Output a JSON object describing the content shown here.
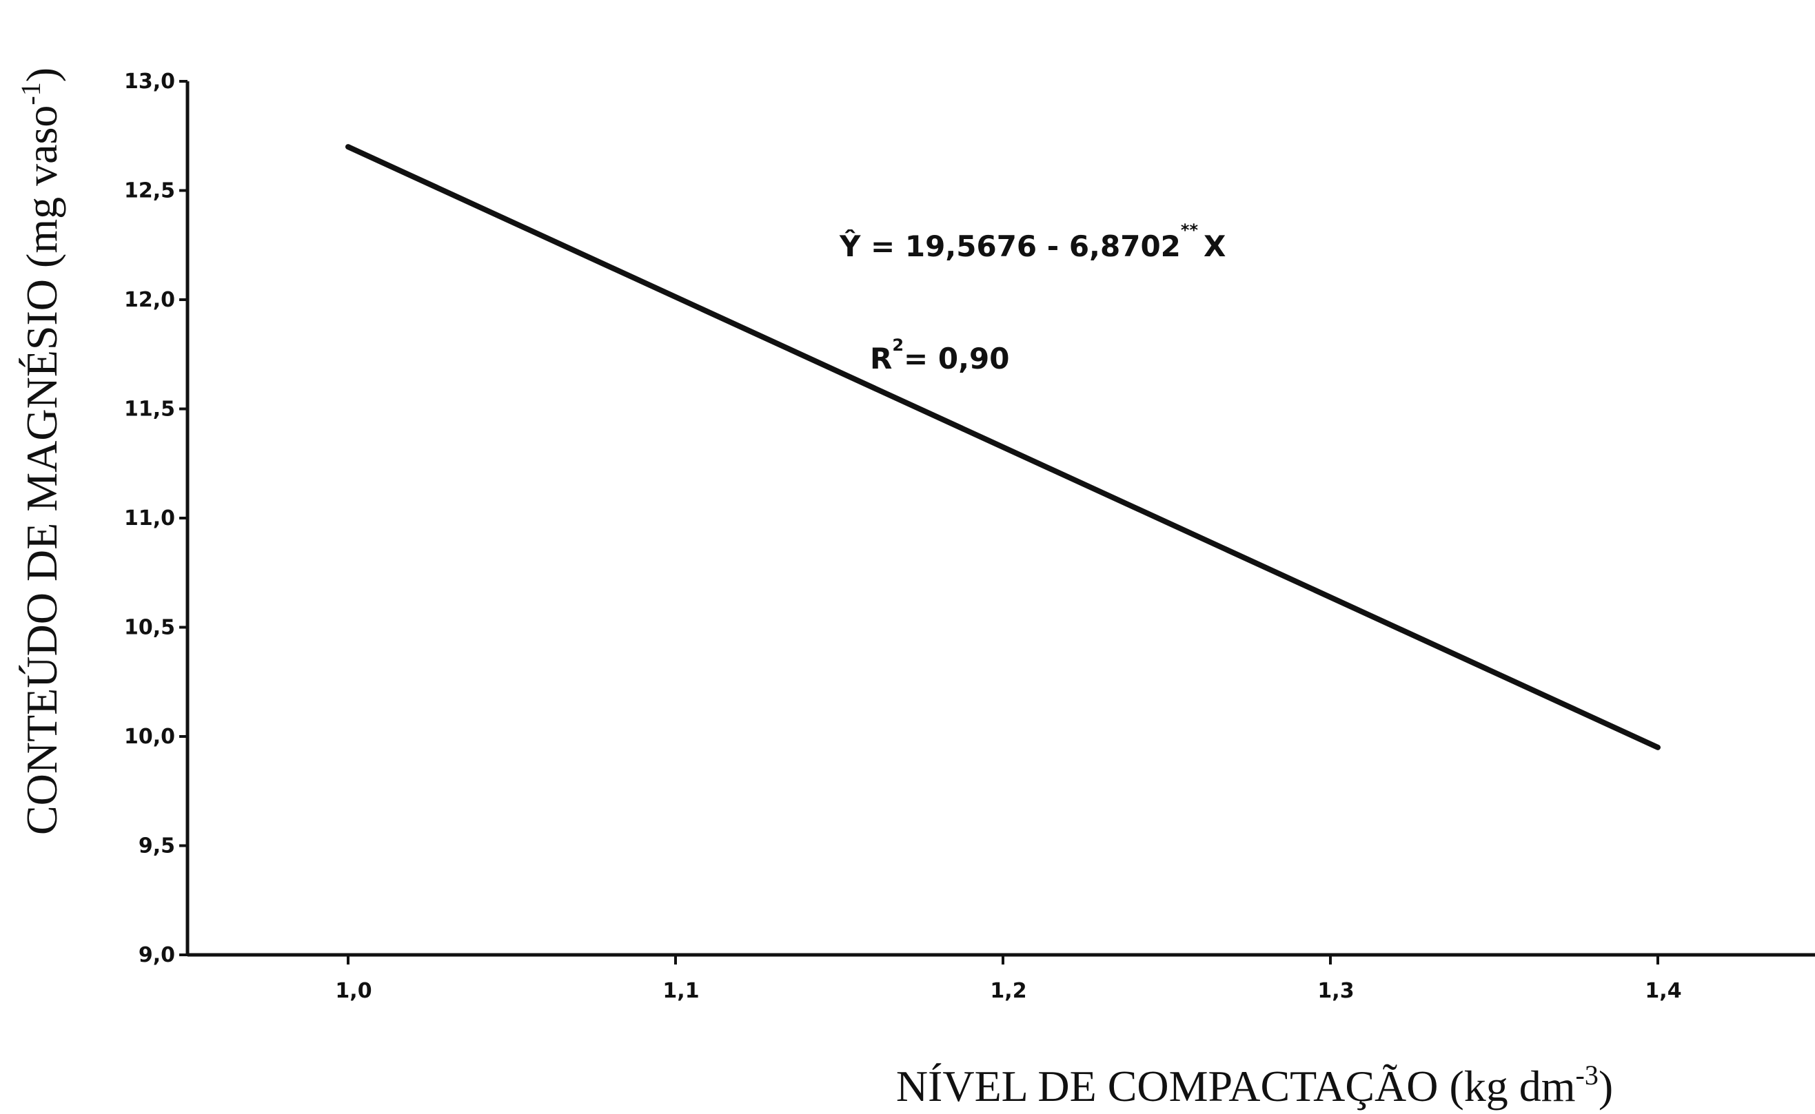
{
  "chart_data": {
    "type": "line",
    "xlabel": "NÍVEL DE COMPACTAÇÃO (kg dm",
    "xlabel_sup": "-3",
    "xlabel_end": ")",
    "ylabel": "CONTEÚDO DE MAGNÉSIO (mg vaso",
    "ylabel_sup": "-1",
    "ylabel_end": ")",
    "xlim": [
      0.95,
      1.45
    ],
    "ylim": [
      9.0,
      13.0
    ],
    "x_ticks": [
      {
        "value": 1.0,
        "label": "1,0"
      },
      {
        "value": 1.1,
        "label": "1,1"
      },
      {
        "value": 1.2,
        "label": "1,2"
      },
      {
        "value": 1.3,
        "label": "1,3"
      },
      {
        "value": 1.4,
        "label": "1,4"
      }
    ],
    "y_ticks": [
      {
        "value": 9.0,
        "label": "9,0"
      },
      {
        "value": 9.5,
        "label": "9,5"
      },
      {
        "value": 10.0,
        "label": "10,0"
      },
      {
        "value": 10.5,
        "label": "10,5"
      },
      {
        "value": 11.0,
        "label": "11,0"
      },
      {
        "value": 11.5,
        "label": "11,5"
      },
      {
        "value": 12.0,
        "label": "12,0"
      },
      {
        "value": 12.5,
        "label": "12,5"
      },
      {
        "value": 13.0,
        "label": "13,0"
      }
    ],
    "grid": false,
    "series": [
      {
        "x": [
          1.0,
          1.4
        ],
        "y": [
          12.7,
          9.95
        ],
        "color": "#111111"
      }
    ],
    "annotations": {
      "equation_prefix": "Ŷ = 19,5676 - 6,8702",
      "equation_sup": "**",
      "equation_suffix": "X",
      "r2_prefix": "R",
      "r2_sup": "2",
      "r2_value": "= 0,90"
    }
  }
}
